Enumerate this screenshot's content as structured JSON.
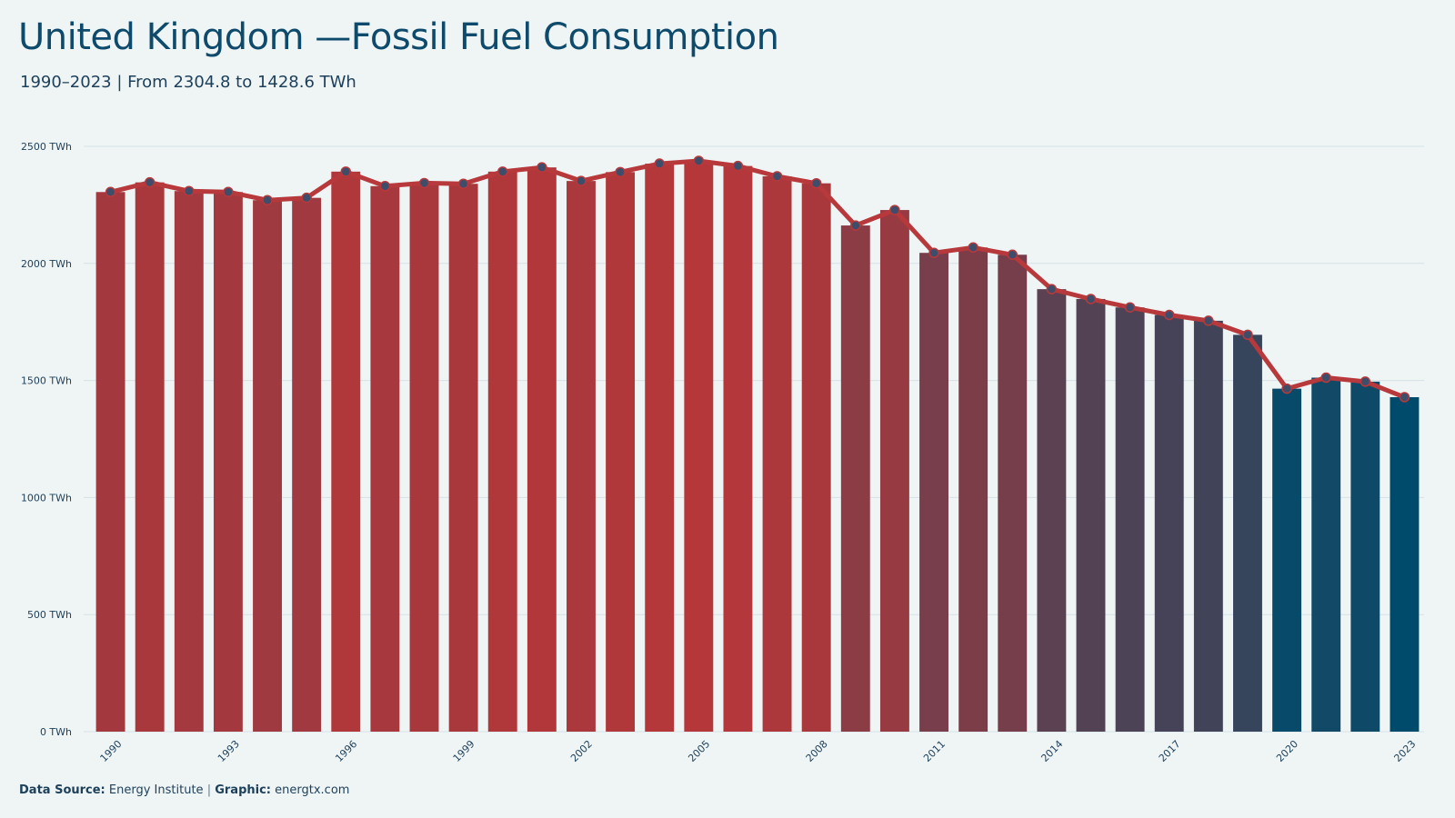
{
  "header": {
    "title": "United Kingdom —Fossil Fuel Consumption",
    "subtitle": "1990–2023 | From 2304.8 to 1428.6  TWh"
  },
  "footer": {
    "source_label": "Data Source:",
    "source_value": "Energy Institute",
    "separator": "|",
    "graphic_label": "Graphic:",
    "graphic_value": "energtx.com"
  },
  "colors": {
    "background": "#eff5f5",
    "title": "#0d4a6b",
    "bar_high": "#b5373a",
    "bar_low": "#004b6b",
    "line": "#b8393b",
    "marker_fill": "#3d4d6a",
    "grid": "#d5e2e6"
  },
  "chart_data": {
    "type": "bar",
    "title": "United Kingdom —Fossil Fuel Consumption",
    "subtitle": "1990–2023 | From 2304.8 to 1428.6  TWh",
    "unit": "TWh",
    "overlay": "line with circle markers",
    "ylim": [
      0,
      2500
    ],
    "y_ticks": [
      0,
      500,
      1000,
      1500,
      2000,
      2500
    ],
    "y_tick_labels": [
      "0 TWh",
      "500 TWh",
      "1000 TWh",
      "1500 TWh",
      "2000 TWh",
      "2500 TWh"
    ],
    "x_tick_labels": [
      "1990",
      "1993",
      "1996",
      "1999",
      "2002",
      "2005",
      "2008",
      "2011",
      "2014",
      "2017",
      "2020",
      "2023"
    ],
    "grid": "horizontal",
    "legend": "none",
    "categories": [
      1990,
      1991,
      1992,
      1993,
      1994,
      1995,
      1996,
      1997,
      1998,
      1999,
      2000,
      2001,
      2002,
      2003,
      2004,
      2005,
      2006,
      2007,
      2008,
      2009,
      2010,
      2011,
      2012,
      2013,
      2014,
      2015,
      2016,
      2017,
      2018,
      2019,
      2020,
      2021,
      2022,
      2023
    ],
    "values": [
      2304.8,
      2346,
      2309,
      2305,
      2270,
      2280,
      2392,
      2330,
      2343,
      2340,
      2392,
      2410,
      2352,
      2390,
      2426,
      2438,
      2416,
      2372,
      2342,
      2162,
      2228,
      2045,
      2068,
      2037,
      1890,
      1848,
      1812,
      1780,
      1755,
      1695,
      1465,
      1512,
      1495,
      1428.6
    ]
  }
}
